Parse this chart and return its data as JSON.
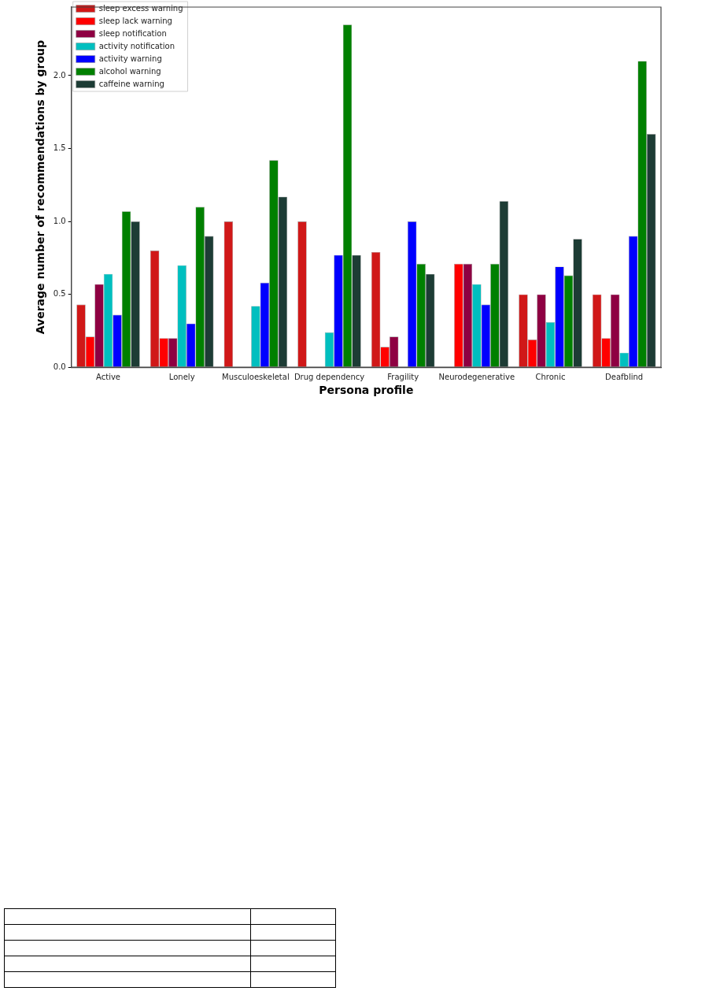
{
  "chart_data": {
    "type": "bar",
    "xlabel": "Persona profile",
    "ylabel": "Average number of recommendations by group",
    "categories": [
      "Active",
      "Lonely",
      "Musculoeskeletal",
      "Drug dependency",
      "Fragility",
      "Neurodegenerative",
      "Chronic",
      "Deafblind"
    ],
    "series": [
      {
        "name": "sleep excess warning",
        "color": "#d01818",
        "values": [
          0.43,
          0.8,
          1.0,
          1.0,
          0.79,
          null,
          0.5,
          0.5
        ]
      },
      {
        "name": "sleep lack warning",
        "color": "#ff0000",
        "values": [
          0.21,
          0.2,
          0,
          0,
          0.14,
          0.71,
          0.19,
          0.2
        ]
      },
      {
        "name": "sleep notification",
        "color": "#8e0042",
        "values": [
          0.57,
          0.2,
          0,
          0,
          0.21,
          0.71,
          0.5,
          0.5
        ]
      },
      {
        "name": "activity notification",
        "color": "#00bfbf",
        "values": [
          0.64,
          0.7,
          0.42,
          0.24,
          0,
          0.57,
          0.31,
          0.1
        ]
      },
      {
        "name": "activity warning",
        "color": "#0000ff",
        "values": [
          0.36,
          0.3,
          0.58,
          0.77,
          1.0,
          0.43,
          0.69,
          0.9
        ]
      },
      {
        "name": "alcohol warning",
        "color": "#008000",
        "values": [
          1.07,
          1.1,
          1.42,
          2.35,
          0.71,
          0.71,
          0.63,
          2.1
        ]
      },
      {
        "name": "caffeine warning",
        "color": "#1d3c35",
        "values": [
          1.0,
          0.9,
          1.17,
          0.77,
          0.64,
          1.14,
          0.88,
          1.6
        ]
      }
    ],
    "ylim": [
      0,
      2.47
    ],
    "yticks": [
      {
        "value": 0,
        "label": "0.0"
      },
      0.5,
      {
        "value": 1,
        "label": "1.0"
      },
      1.5,
      {
        "value": 2,
        "label": "2.0"
      }
    ],
    "grid": false,
    "legend": "top left"
  }
}
